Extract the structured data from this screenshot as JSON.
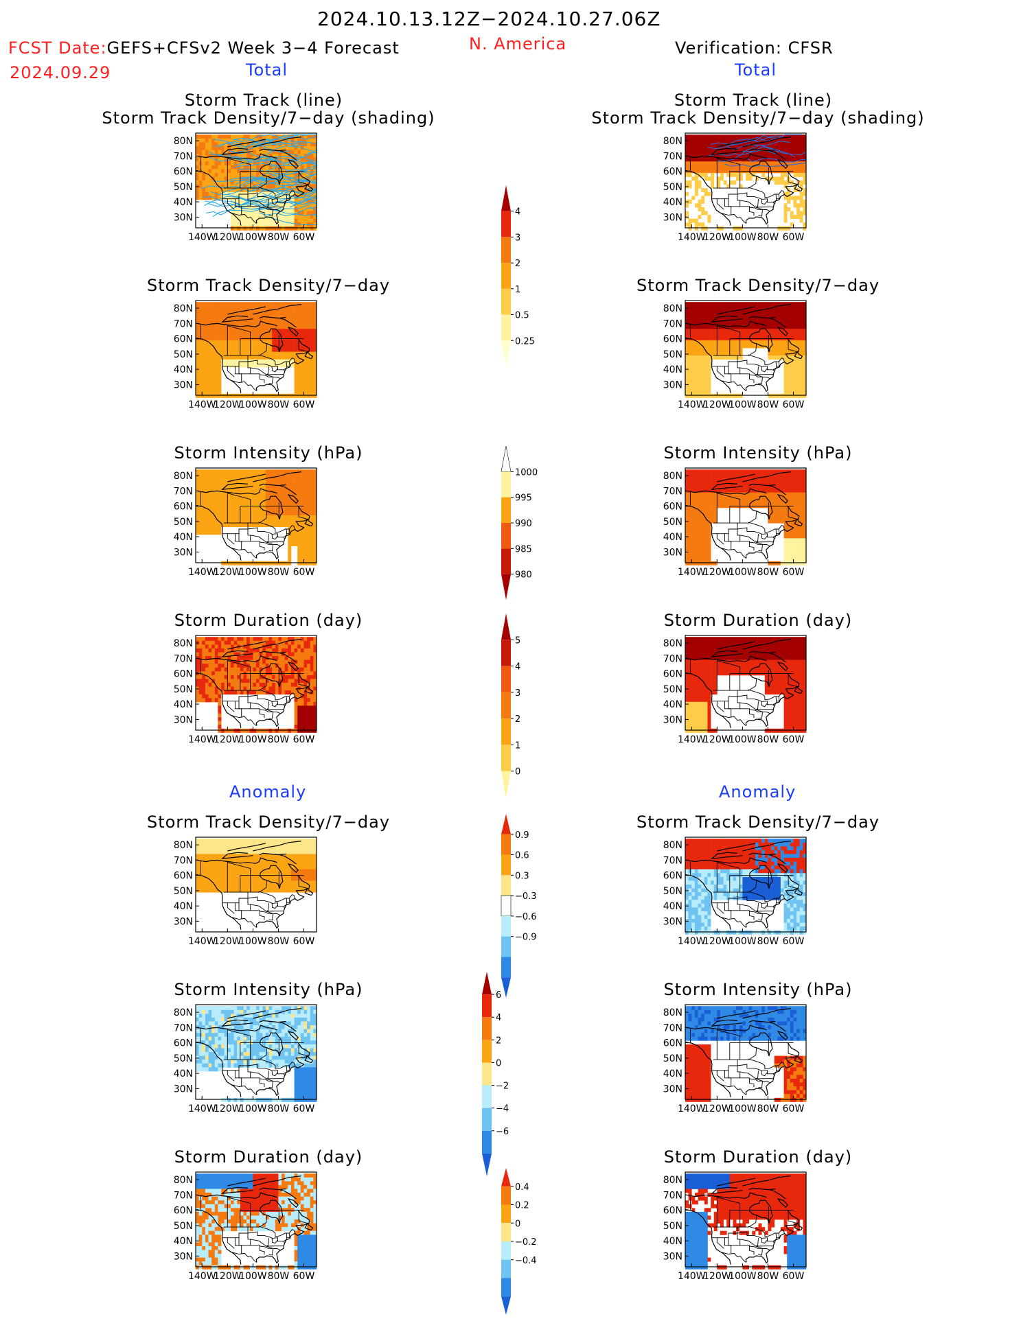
{
  "header": {
    "date_range": "2024.10.13.12Z−2024.10.27.06Z",
    "region": "N. America",
    "fcst_date_label": "FCST Date:",
    "fcst_model": "GEFS+CFSv2 Week 3−4 Forecast",
    "fcst_date": "2024.09.29",
    "verification": "Verification: CFSR"
  },
  "columns": {
    "left_total_label": "Total",
    "right_total_label": "Total",
    "left_anomaly_label": "Anomaly",
    "right_anomaly_label": "Anomaly"
  },
  "panel_titles": {
    "track_line": "Storm Track (line)",
    "track_shading": "Storm Track Density/7−day (shading)",
    "density": "Storm Track Density/7−day",
    "intensity": "Storm Intensity (hPa)",
    "duration": "Storm Duration (day)"
  },
  "map_axes": {
    "lat_labels": [
      "80N",
      "70N",
      "60N",
      "50N",
      "40N",
      "30N"
    ],
    "lon_labels": [
      "140W",
      "120W",
      "100W",
      "80W",
      "60W"
    ]
  },
  "colorbars": {
    "density_total": {
      "labels": [
        "4",
        "3",
        "2",
        "1",
        "0.5",
        "0.25"
      ],
      "colors": [
        "#a50000",
        "#e8280c",
        "#f57a10",
        "#fca514",
        "#fdcd4a",
        "#fff3a0",
        "#ffffcc"
      ]
    },
    "intensity_total": {
      "labels": [
        "1000",
        "995",
        "990",
        "985",
        "980"
      ],
      "colors": [
        "#ffffff",
        "#fff3a0",
        "#fca514",
        "#f05a10",
        "#c81a0a",
        "#a50000"
      ]
    },
    "duration_total": {
      "labels": [
        "5",
        "4",
        "3",
        "2",
        "1",
        "0"
      ],
      "colors": [
        "#a50000",
        "#c81a0a",
        "#f05a10",
        "#f57a10",
        "#fca514",
        "#fdcd4a",
        "#fff3a0"
      ]
    },
    "density_anom": {
      "labels": [
        "0.9",
        "0.6",
        "0.3",
        "−0.3",
        "−0.6",
        "−0.9"
      ],
      "colors": [
        "#e8280c",
        "#f57a10",
        "#fca514",
        "#fde68a",
        "#ffffff",
        "#b8ecfb",
        "#6fc3f0",
        "#2f8ae6",
        "#1a5fd6"
      ]
    },
    "intensity_anom": {
      "labels": [
        "6",
        "4",
        "2",
        "0",
        "−2",
        "−4",
        "−6"
      ],
      "colors": [
        "#a50000",
        "#e8280c",
        "#f57a10",
        "#fca514",
        "#fde68a",
        "#b8ecfb",
        "#6fc3f0",
        "#2f8ae6",
        "#1a5fd6"
      ]
    },
    "duration_anom": {
      "labels": [
        "0.4",
        "0.2",
        "0",
        "−0.2",
        "−0.4"
      ],
      "colors": [
        "#e8280c",
        "#f57a10",
        "#fca514",
        "#fde68a",
        "#b8ecfb",
        "#6fc3f0",
        "#2f8ae6",
        "#1a5fd6"
      ]
    }
  }
}
